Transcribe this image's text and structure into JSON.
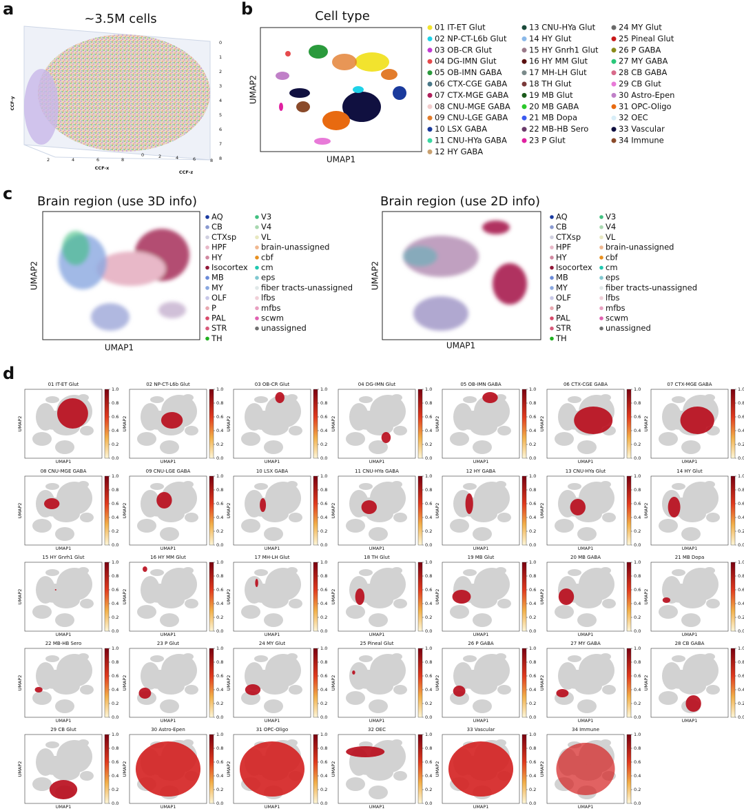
{
  "panels": {
    "a": {
      "label": "a",
      "title": "~3.5M cells",
      "x_label": "CCF-x",
      "y_label": "CCF-y",
      "z_label": "CCF-z",
      "y_ticks": [
        "0",
        "1",
        "2",
        "3",
        "4",
        "5",
        "6",
        "7",
        "8"
      ],
      "x_ticks": [
        "2",
        "4",
        "6",
        "8"
      ],
      "z_ticks": [
        "0",
        "2",
        "4",
        "6",
        "8"
      ]
    },
    "b": {
      "label": "b",
      "title": "Cell type",
      "x_label": "UMAP1",
      "y_label": "UMAP2",
      "legend": [
        {
          "name": "01 IT-ET Glut",
          "color": "#f2e32e"
        },
        {
          "name": "02 NP-CT-L6b Glut",
          "color": "#1fd2e8"
        },
        {
          "name": "03 OB-CR Glut",
          "color": "#c23cd2"
        },
        {
          "name": "04 DG-IMN Glut",
          "color": "#e64a4c"
        },
        {
          "name": "05 OB-IMN GABA",
          "color": "#2a9a3c"
        },
        {
          "name": "06 CTX-CGE GABA",
          "color": "#4a7888"
        },
        {
          "name": "07 CTX-MGE GABA",
          "color": "#b0205c"
        },
        {
          "name": "08 CNU-MGE GABA",
          "color": "#f2cccc"
        },
        {
          "name": "09 CNU-LGE GABA",
          "color": "#e27c2c"
        },
        {
          "name": "10 LSX GABA",
          "color": "#1a3a9c"
        },
        {
          "name": "11 CNU-HYa GABA",
          "color": "#3ad8a2"
        },
        {
          "name": "12 HY GABA",
          "color": "#c8a070"
        },
        {
          "name": "13 CNU-HYa Glut",
          "color": "#1a4a3a"
        },
        {
          "name": "14 HY Glut",
          "color": "#8ab8e8"
        },
        {
          "name": "15 HY Gnrh1 Glut",
          "color": "#9a7a8a"
        },
        {
          "name": "16 HY MM Glut",
          "color": "#5a1010"
        },
        {
          "name": "17 MH-LH Glut",
          "color": "#7a8a8a"
        },
        {
          "name": "18 TH Glut",
          "color": "#7a3a3a"
        },
        {
          "name": "19 MB Glut",
          "color": "#1a5a1a"
        },
        {
          "name": "20 MB GABA",
          "color": "#2ac82a"
        },
        {
          "name": "21 MB Dopa",
          "color": "#3a5af0"
        },
        {
          "name": "22 MB-HB Sero",
          "color": "#6a3a6a"
        },
        {
          "name": "23 P Glut",
          "color": "#e020a0"
        },
        {
          "name": "24 MY Glut",
          "color": "#6a6a6a"
        },
        {
          "name": "25 Pineal Glut",
          "color": "#c81a1a"
        },
        {
          "name": "26 P GABA",
          "color": "#8a8a1a"
        },
        {
          "name": "27 MY GABA",
          "color": "#2ac87a"
        },
        {
          "name": "28 CB GABA",
          "color": "#d86a8a"
        },
        {
          "name": "29 CB Glut",
          "color": "#e87ad8"
        },
        {
          "name": "30 Astro-Epen",
          "color": "#c080c8"
        },
        {
          "name": "31 OPC-Oligo",
          "color": "#e86a10"
        },
        {
          "name": "32 OEC",
          "color": "#d8eef8"
        },
        {
          "name": "33 Vascular",
          "color": "#101040"
        },
        {
          "name": "34 Immune",
          "color": "#8a4a2a"
        }
      ]
    },
    "c": {
      "label": "c",
      "title_3d": "Brain region (use 3D info)",
      "title_2d": "Brain region (use 2D info)",
      "x_label": "UMAP1",
      "y_label": "UMAP2",
      "legend": [
        {
          "name": "AQ",
          "color": "#1a3aa0"
        },
        {
          "name": "CB",
          "color": "#8a9ad0"
        },
        {
          "name": "CTXsp",
          "color": "#d0d0e0"
        },
        {
          "name": "HPF",
          "color": "#e8b8c8"
        },
        {
          "name": "HY",
          "color": "#d088a0"
        },
        {
          "name": "Isocortex",
          "color": "#901838"
        },
        {
          "name": "MB",
          "color": "#6a8ad8"
        },
        {
          "name": "MY",
          "color": "#8aa8e0"
        },
        {
          "name": "OLF",
          "color": "#c8c8e8"
        },
        {
          "name": "P",
          "color": "#e8a8b0"
        },
        {
          "name": "PAL",
          "color": "#d84a6a"
        },
        {
          "name": "STR",
          "color": "#d85a7a"
        },
        {
          "name": "TH",
          "color": "#20b020"
        },
        {
          "name": "V3",
          "color": "#40c080"
        },
        {
          "name": "V4",
          "color": "#a8d8b0"
        },
        {
          "name": "VL",
          "color": "#e8e8c0"
        },
        {
          "name": "brain-unassigned",
          "color": "#f0b890"
        },
        {
          "name": "cbf",
          "color": "#e89020"
        },
        {
          "name": "cm",
          "color": "#20c8b0"
        },
        {
          "name": "eps",
          "color": "#80c8d0"
        },
        {
          "name": "fiber tracts-unassigned",
          "color": "#e0e8e8"
        },
        {
          "name": "lfbs",
          "color": "#f0d0d8"
        },
        {
          "name": "mfbs",
          "color": "#e8a0c0"
        },
        {
          "name": "scwm",
          "color": "#e060b0"
        },
        {
          "name": "unassigned",
          "color": "#707070"
        }
      ]
    },
    "d": {
      "label": "d",
      "x_label": "UMAP1",
      "y_label": "UMAP2",
      "colorbar_ticks": [
        "0.0",
        "0.2",
        "0.4",
        "0.6",
        "0.8",
        "1.0"
      ],
      "titles": [
        "01 IT-ET Glut",
        "02 NP-CT-L6b Glut",
        "03 OB-CR Glut",
        "04 DG-IMN Glut",
        "05 OB-IMN GABA",
        "06 CTX-CGE GABA",
        "07 CTX-MGE GABA",
        "08 CNU-MGE GABA",
        "09 CNU-LGE GABA",
        "10 LSX GABA",
        "11 CNU-HYa GABA",
        "12 HY GABA",
        "13 CNU-HYa Glut",
        "14 HY Glut",
        "15 HY Gnrh1 Glut",
        "16 HY MM Glut",
        "17 MH-LH Glut",
        "18 TH Glut",
        "19 MB Glut",
        "20 MB GABA",
        "21 MB Dopa",
        "22 MB-HB Sero",
        "23 P Glut",
        "24 MY Glut",
        "25 Pineal Glut",
        "26 P GABA",
        "27 MY GABA",
        "28 CB GABA",
        "29 CB Glut",
        "30 Astro-Epen",
        "31 OPC-Oligo",
        "32 OEC",
        "33 Vascular",
        "34 Immune"
      ]
    }
  }
}
